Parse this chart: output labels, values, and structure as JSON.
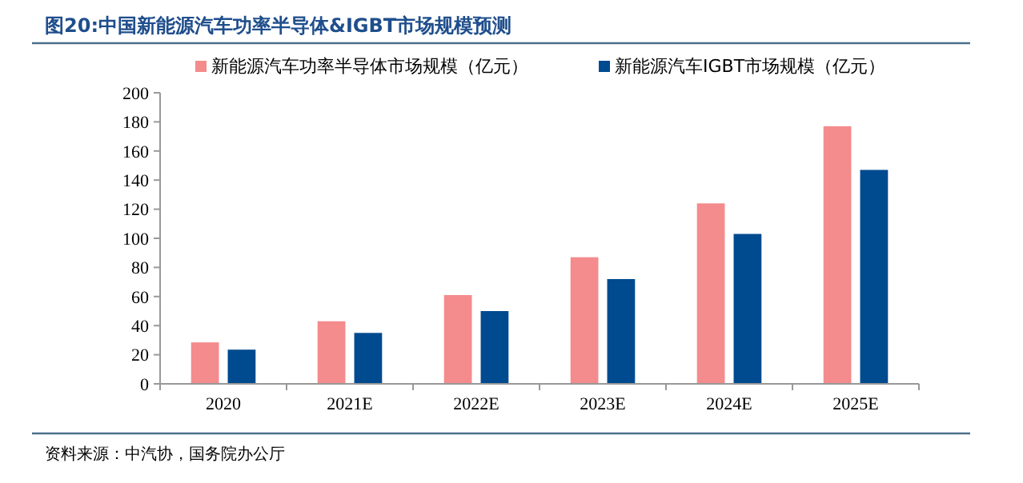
{
  "chart_data": {
    "type": "bar",
    "title": "图20:中国新能源汽车功率半导体&IGBT市场规模预测",
    "categories": [
      "2020",
      "2021E",
      "2022E",
      "2023E",
      "2024E",
      "2025E"
    ],
    "series": [
      {
        "name": "新能源汽车功率半导体市场规模（亿元）",
        "color": "#f48b8c",
        "values": [
          28.5,
          43,
          61,
          87,
          124,
          177
        ]
      },
      {
        "name": "新能源汽车IGBT市场规模（亿元）",
        "color": "#004a8f",
        "values": [
          23.5,
          35,
          50,
          72,
          103,
          147
        ]
      }
    ],
    "ylim": [
      0,
      200
    ],
    "yticks": [
      0,
      20,
      40,
      60,
      80,
      100,
      120,
      140,
      160,
      180,
      200
    ],
    "grid": false,
    "legend": "top",
    "annotations": [
      "资料来源：中汽协，国务院办公厅"
    ]
  }
}
